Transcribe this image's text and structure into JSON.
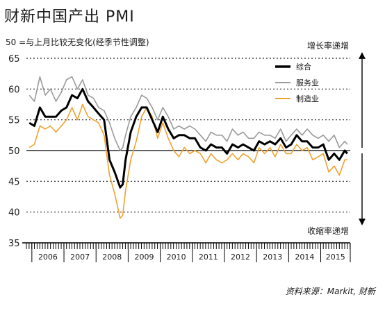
{
  "title": "财新中国产出 PMI",
  "subtitle": "50 =与上月比较无变化(经季节性调整)",
  "source": "资料来源：Markit, 财新",
  "annotations": {
    "up": "增长率递增",
    "down": "收缩率递增"
  },
  "colors": {
    "composite": "#000000",
    "services": "#9a9a9a",
    "manufacturing": "#f0a22e"
  },
  "chart_data": {
    "type": "line",
    "title": "财新中国产出 PMI",
    "ylim": [
      35,
      65
    ],
    "yticks": [
      35,
      40,
      45,
      50,
      55,
      60,
      65
    ],
    "xlim": [
      2005.83,
      2015.92
    ],
    "xticks": [
      "2006",
      "2007",
      "2008",
      "2009",
      "2010",
      "2011",
      "2012",
      "2013",
      "2014",
      "2015"
    ],
    "reference_line": 50,
    "legend_position": "top-right",
    "series": [
      {
        "name": "综合",
        "x": [
          2005.92,
          2006.08,
          2006.25,
          2006.42,
          2006.58,
          2006.75,
          2006.92,
          2007.08,
          2007.25,
          2007.42,
          2007.58,
          2007.75,
          2007.92,
          2008.08,
          2008.25,
          2008.42,
          2008.58,
          2008.75,
          2008.83,
          2008.92,
          2009.08,
          2009.25,
          2009.42,
          2009.58,
          2009.75,
          2009.92,
          2010.08,
          2010.25,
          2010.42,
          2010.58,
          2010.75,
          2010.92,
          2011.08,
          2011.25,
          2011.42,
          2011.58,
          2011.75,
          2011.92,
          2012.08,
          2012.25,
          2012.42,
          2012.58,
          2012.75,
          2012.92,
          2013.08,
          2013.25,
          2013.42,
          2013.58,
          2013.75,
          2013.92,
          2014.08,
          2014.25,
          2014.42,
          2014.58,
          2014.75,
          2014.92,
          2015.08,
          2015.25,
          2015.42,
          2015.58,
          2015.75,
          2015.83
        ],
        "values": [
          54.5,
          54.0,
          57.0,
          55.5,
          55.5,
          55.5,
          56.5,
          57.0,
          59.0,
          58.5,
          60.0,
          58.0,
          57.0,
          56.0,
          55.0,
          48.5,
          46.5,
          44.0,
          44.5,
          48.5,
          53.0,
          55.5,
          57.0,
          57.0,
          55.0,
          53.0,
          55.5,
          53.5,
          52.0,
          52.5,
          52.5,
          52.0,
          52.0,
          50.5,
          50.0,
          51.0,
          50.5,
          50.5,
          49.5,
          51.0,
          50.5,
          51.0,
          50.5,
          50.0,
          51.5,
          51.0,
          51.5,
          51.0,
          52.0,
          50.5,
          51.0,
          52.5,
          51.5,
          51.5,
          50.5,
          50.5,
          51.0,
          48.5,
          49.5,
          48.5,
          50.0,
          49.5
        ]
      },
      {
        "name": "服务业",
        "x": [
          2005.92,
          2006.08,
          2006.25,
          2006.42,
          2006.58,
          2006.75,
          2006.92,
          2007.08,
          2007.25,
          2007.42,
          2007.58,
          2007.75,
          2007.92,
          2008.08,
          2008.25,
          2008.42,
          2008.58,
          2008.75,
          2008.83,
          2008.92,
          2009.08,
          2009.25,
          2009.42,
          2009.58,
          2009.75,
          2009.92,
          2010.08,
          2010.25,
          2010.42,
          2010.58,
          2010.75,
          2010.92,
          2011.08,
          2011.25,
          2011.42,
          2011.58,
          2011.75,
          2011.92,
          2012.08,
          2012.25,
          2012.42,
          2012.58,
          2012.75,
          2012.92,
          2013.08,
          2013.25,
          2013.42,
          2013.58,
          2013.75,
          2013.92,
          2014.08,
          2014.25,
          2014.42,
          2014.58,
          2014.75,
          2014.92,
          2015.08,
          2015.25,
          2015.42,
          2015.58,
          2015.75,
          2015.83
        ],
        "values": [
          59.0,
          58.0,
          62.0,
          59.0,
          60.0,
          58.0,
          59.5,
          61.5,
          62.0,
          60.0,
          61.5,
          59.0,
          58.5,
          57.0,
          56.5,
          54.5,
          52.0,
          50.0,
          50.5,
          52.5,
          55.5,
          57.0,
          59.0,
          58.5,
          57.0,
          55.0,
          57.0,
          55.5,
          53.5,
          54.0,
          53.5,
          54.0,
          53.5,
          52.5,
          51.5,
          53.0,
          52.5,
          52.5,
          51.5,
          53.5,
          52.5,
          53.0,
          52.0,
          52.0,
          53.0,
          52.5,
          52.5,
          52.0,
          53.5,
          51.5,
          52.5,
          53.5,
          52.5,
          53.5,
          52.5,
          52.0,
          52.5,
          51.5,
          52.5,
          50.5,
          51.5,
          51.0
        ]
      },
      {
        "name": "制造业",
        "x": [
          2005.92,
          2006.08,
          2006.25,
          2006.42,
          2006.58,
          2006.75,
          2006.92,
          2007.08,
          2007.25,
          2007.42,
          2007.58,
          2007.75,
          2007.92,
          2008.08,
          2008.25,
          2008.42,
          2008.58,
          2008.75,
          2008.83,
          2008.92,
          2009.08,
          2009.25,
          2009.42,
          2009.58,
          2009.75,
          2009.92,
          2010.08,
          2010.25,
          2010.42,
          2010.58,
          2010.75,
          2010.92,
          2011.08,
          2011.25,
          2011.42,
          2011.58,
          2011.75,
          2011.92,
          2012.08,
          2012.25,
          2012.42,
          2012.58,
          2012.75,
          2012.92,
          2013.08,
          2013.25,
          2013.42,
          2013.58,
          2013.75,
          2013.92,
          2014.08,
          2014.25,
          2014.42,
          2014.58,
          2014.75,
          2014.92,
          2015.08,
          2015.25,
          2015.42,
          2015.58,
          2015.75,
          2015.83
        ],
        "values": [
          50.5,
          51.0,
          54.0,
          53.5,
          54.0,
          53.0,
          54.0,
          55.0,
          57.0,
          55.0,
          57.5,
          55.5,
          55.0,
          54.5,
          52.5,
          46.0,
          43.0,
          39.0,
          39.5,
          43.5,
          48.5,
          51.5,
          55.5,
          57.0,
          55.5,
          52.0,
          54.5,
          52.0,
          50.0,
          49.0,
          50.5,
          49.5,
          50.0,
          49.5,
          48.0,
          49.5,
          48.5,
          48.0,
          48.5,
          49.5,
          48.5,
          49.5,
          49.0,
          48.0,
          50.5,
          49.5,
          50.5,
          49.0,
          51.0,
          49.5,
          49.5,
          51.0,
          50.0,
          50.5,
          48.5,
          49.0,
          49.5,
          46.5,
          47.5,
          46.0,
          48.5,
          48.5
        ]
      }
    ]
  }
}
